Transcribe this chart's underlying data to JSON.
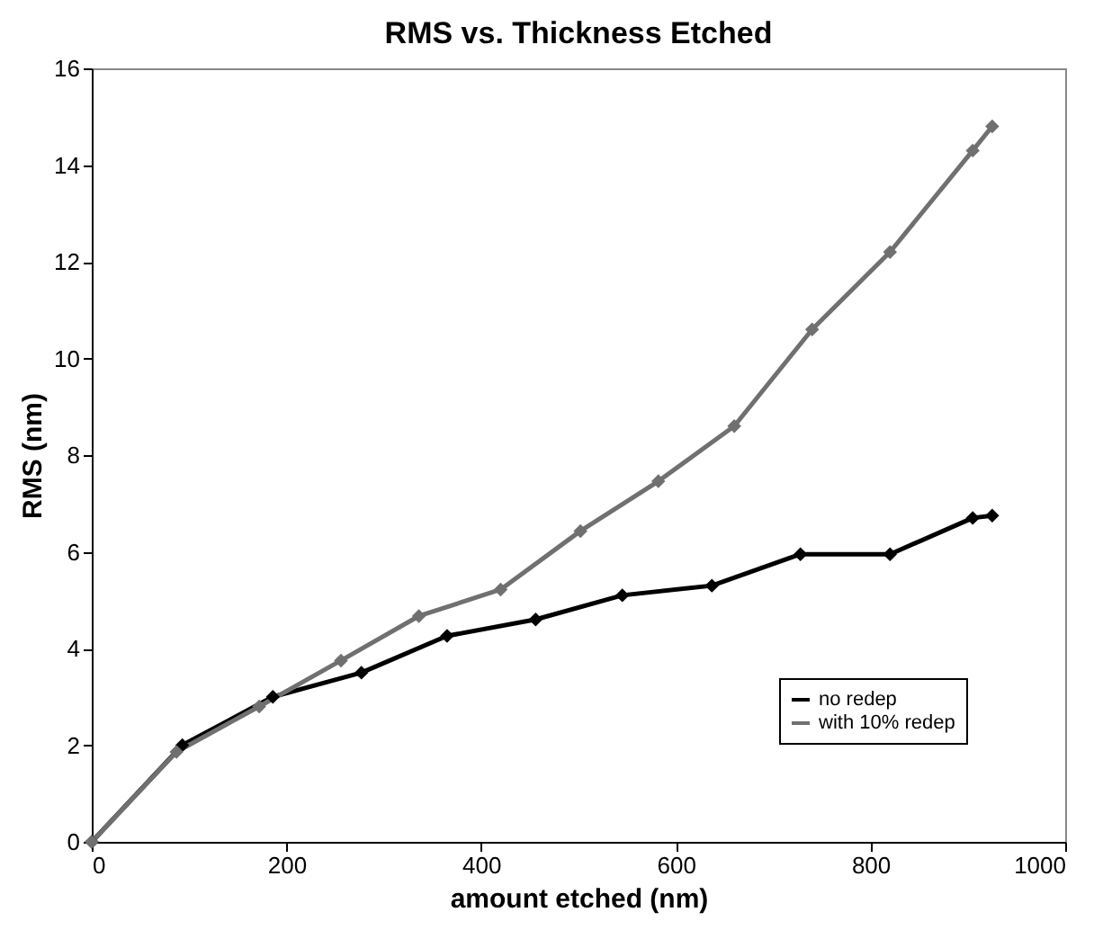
{
  "chart_data": {
    "type": "line",
    "title": "RMS vs. Thickness Etched",
    "xlabel": "amount etched (nm)",
    "ylabel": "RMS (nm)",
    "xlim": [
      0,
      1000
    ],
    "xticks": [
      0,
      200,
      400,
      600,
      800,
      1000
    ],
    "ylim": [
      0,
      16
    ],
    "yticks": [
      0,
      2,
      4,
      6,
      8,
      10,
      12,
      14,
      16
    ],
    "grid": false,
    "legend": "bottom right",
    "marker": "diamond",
    "line_style": "solid",
    "series": [
      {
        "name": "no redep",
        "color": "#000000",
        "x": [
          0,
          93,
          186,
          277,
          365,
          456,
          545,
          637,
          728,
          820,
          905,
          925
        ],
        "values": [
          0,
          2.0,
          3.0,
          3.5,
          4.26,
          4.6,
          5.1,
          5.3,
          5.95,
          5.95,
          6.7,
          6.75
        ]
      },
      {
        "name": "with 10% redep",
        "color": "#707070",
        "x": [
          0,
          87,
          172,
          256,
          336,
          420,
          502,
          582,
          660,
          740,
          820,
          905,
          925
        ],
        "values": [
          0,
          1.86,
          2.8,
          3.75,
          4.67,
          5.22,
          6.43,
          7.46,
          8.6,
          10.6,
          12.2,
          14.3,
          14.8
        ]
      }
    ]
  }
}
